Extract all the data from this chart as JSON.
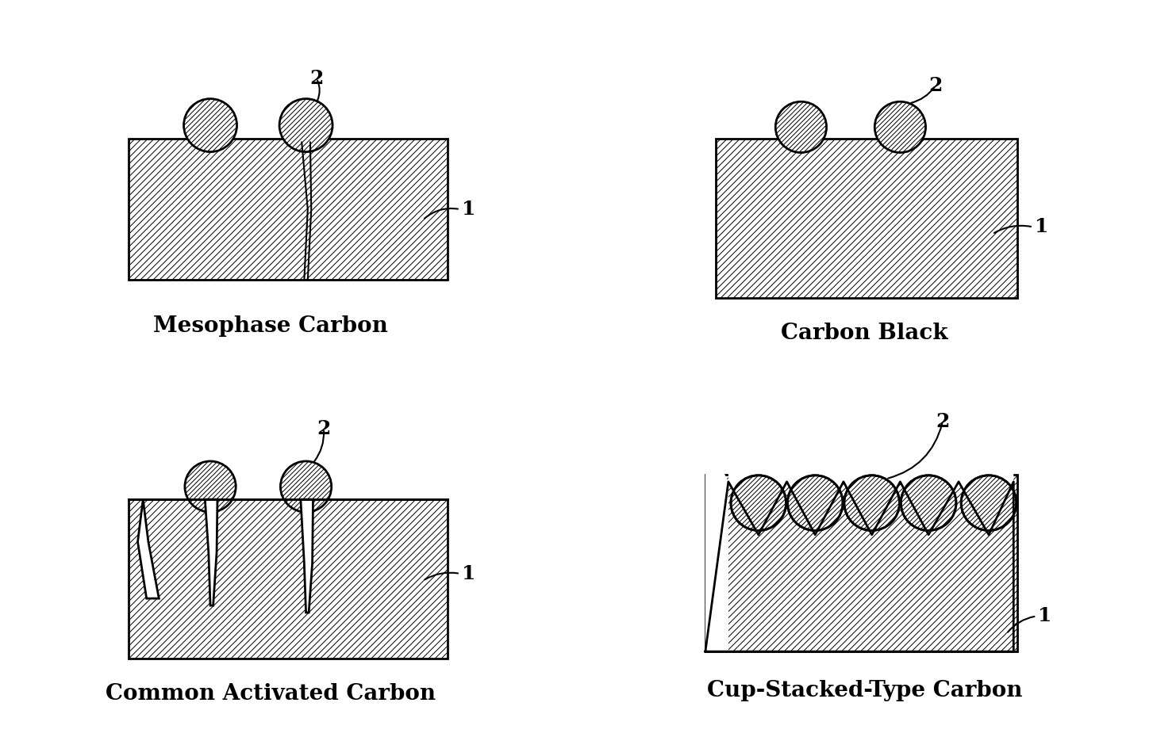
{
  "bg_color": "#ffffff",
  "line_color": "#000000",
  "label_fontsize": 20,
  "number_fontsize": 18,
  "panels": [
    {
      "name": "Mesophase Carbon"
    },
    {
      "name": "Carbon Black"
    },
    {
      "name": "Common Activated Carbon"
    },
    {
      "name": "Cup-Stacked-Type Carbon"
    }
  ]
}
